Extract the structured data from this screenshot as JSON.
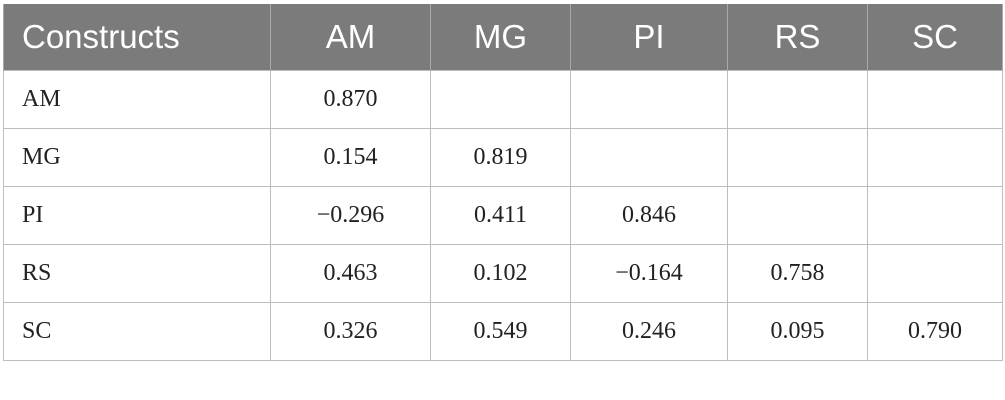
{
  "table": {
    "headers": [
      "Constructs",
      "AM",
      "MG",
      "PI",
      "RS",
      "SC"
    ],
    "rows": [
      [
        "AM",
        "0.870",
        "",
        "",
        "",
        ""
      ],
      [
        "MG",
        "0.154",
        "0.819",
        "",
        "",
        ""
      ],
      [
        "PI",
        "−0.296",
        "0.411",
        "0.846",
        "",
        ""
      ],
      [
        "RS",
        "0.463",
        "0.102",
        "−0.164",
        "0.758",
        ""
      ],
      [
        "SC",
        "0.326",
        "0.549",
        "0.246",
        "0.095",
        "0.790"
      ]
    ]
  },
  "colors": {
    "header_bg": "#7b7b7b",
    "header_text": "#ffffff",
    "grid": "#bdbdbd"
  }
}
